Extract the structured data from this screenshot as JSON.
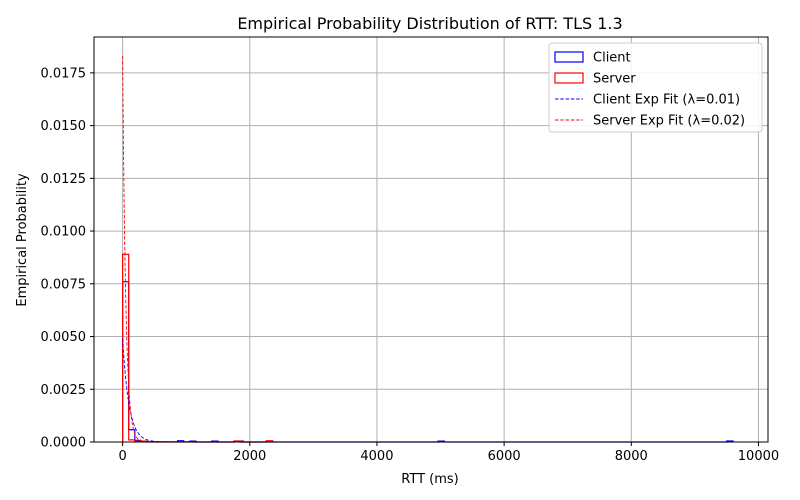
{
  "chart_data": {
    "type": "histogram",
    "title": "Empirical Probability Distribution of RTT: TLS 1.3",
    "xlabel": "RTT (ms)",
    "ylabel": "Empirical Probability",
    "xlim": [
      -450,
      10150
    ],
    "ylim": [
      0,
      0.0192
    ],
    "x_ticks": [
      0,
      2000,
      4000,
      6000,
      8000,
      10000
    ],
    "x_tick_labels": [
      "0",
      "2000",
      "4000",
      "6000",
      "8000",
      "10000"
    ],
    "y_ticks": [
      0.0,
      0.0025,
      0.005,
      0.0075,
      0.01,
      0.0125,
      0.015,
      0.0175
    ],
    "y_tick_labels": [
      "0.0000",
      "0.0025",
      "0.0050",
      "0.0075",
      "0.0100",
      "0.0125",
      "0.0150",
      "0.0175"
    ],
    "grid": true,
    "legend_position": "top-right",
    "series": [
      {
        "name": "Client",
        "kind": "step-histogram",
        "color": "#0000ff",
        "bins": [
          {
            "x0": 0,
            "x1": 96,
            "y": 0.0076
          },
          {
            "x0": 96,
            "x1": 192,
            "y": 0.00058
          },
          {
            "x0": 192,
            "x1": 288,
            "y": 8e-05
          },
          {
            "x0": 288,
            "x1": 384,
            "y": 4e-05
          },
          {
            "x0": 384,
            "x1": 864,
            "y": 1e-05
          },
          {
            "x0": 864,
            "x1": 960,
            "y": 6e-05
          },
          {
            "x0": 960,
            "x1": 1056,
            "y": 1e-05
          },
          {
            "x0": 1056,
            "x1": 1152,
            "y": 4e-05
          },
          {
            "x0": 1152,
            "x1": 1400,
            "y": 0.0
          },
          {
            "x0": 1400,
            "x1": 1500,
            "y": 4e-05
          },
          {
            "x0": 1500,
            "x1": 1750,
            "y": 0.0
          },
          {
            "x0": 1750,
            "x1": 1850,
            "y": 4e-05
          },
          {
            "x0": 1850,
            "x1": 4960,
            "y": 0.0
          },
          {
            "x0": 4960,
            "x1": 5060,
            "y": 4e-05
          },
          {
            "x0": 5060,
            "x1": 9500,
            "y": 0.0
          },
          {
            "x0": 9500,
            "x1": 9600,
            "y": 5e-05
          }
        ]
      },
      {
        "name": "Server",
        "kind": "step-histogram",
        "color": "#ff0000",
        "bins": [
          {
            "x0": 0,
            "x1": 96,
            "y": 0.0089
          },
          {
            "x0": 96,
            "x1": 192,
            "y": 0.0001
          },
          {
            "x0": 192,
            "x1": 384,
            "y": 4e-05
          },
          {
            "x0": 384,
            "x1": 1760,
            "y": 0.0
          },
          {
            "x0": 1760,
            "x1": 1900,
            "y": 5e-05
          },
          {
            "x0": 1900,
            "x1": 2260,
            "y": 0.0
          },
          {
            "x0": 2260,
            "x1": 2360,
            "y": 6e-05
          }
        ]
      },
      {
        "name": "Client Exp Fit (λ=0.01)",
        "kind": "exp-fit",
        "color": "#0000ff",
        "lambda": 0.01,
        "amplitude": 0.0049,
        "x_range": [
          0,
          9600
        ]
      },
      {
        "name": "Server Exp Fit (λ=0.02)",
        "kind": "exp-fit",
        "color": "#ff0000",
        "lambda": 0.02,
        "amplitude": 0.0183,
        "x_range": [
          0,
          9600
        ]
      }
    ]
  }
}
